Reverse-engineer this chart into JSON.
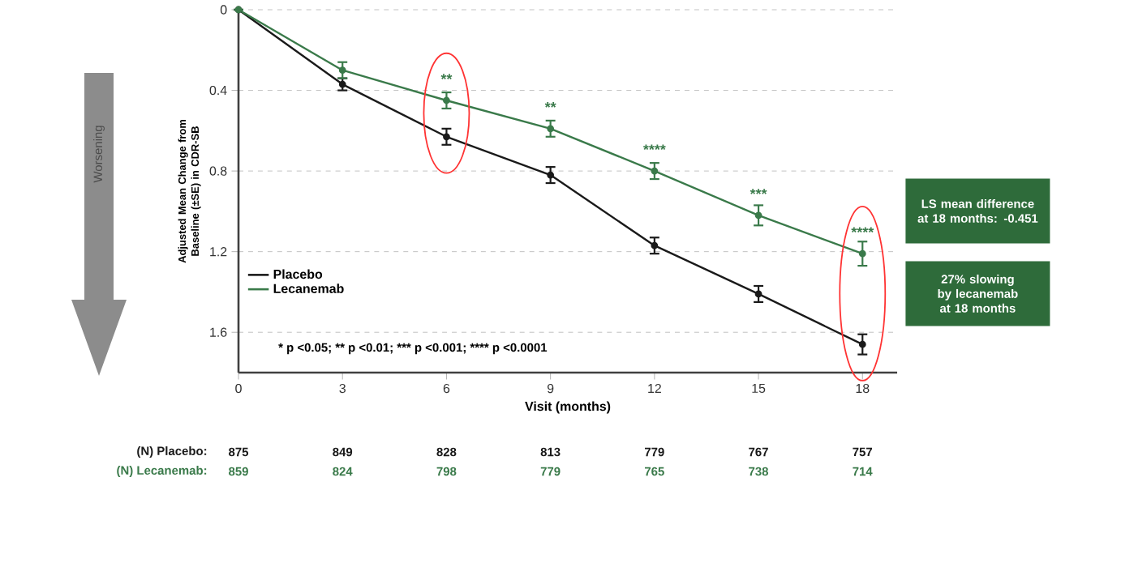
{
  "chart_data": {
    "type": "line",
    "xlabel": "Visit (months)",
    "ylabel": "Adjusted Mean Change from Baseline (±SE) in CDR-SB",
    "x": [
      0,
      3,
      6,
      9,
      12,
      15,
      18
    ],
    "series": [
      {
        "name": "Placebo",
        "color": "#1a1a1a",
        "values": [
          0,
          0.37,
          0.63,
          0.82,
          1.17,
          1.41,
          1.66
        ],
        "errors": [
          null,
          0.03,
          0.04,
          0.04,
          0.04,
          0.04,
          0.05
        ]
      },
      {
        "name": "Lecanemab",
        "color": "#3a7a4a",
        "values": [
          0,
          0.3,
          0.45,
          0.59,
          0.8,
          1.02,
          1.21
        ],
        "errors": [
          null,
          0.04,
          0.04,
          0.04,
          0.04,
          0.05,
          0.06
        ]
      }
    ],
    "xlim": [
      0,
      19
    ],
    "xticks": [
      0,
      3,
      6,
      9,
      12,
      15,
      18
    ],
    "ylim": [
      1.8,
      0
    ],
    "yticks": [
      0,
      0.4,
      0.8,
      1.2,
      1.6
    ],
    "grid": "y",
    "legend": "bottom left",
    "marker": "circle",
    "line_style": "solid",
    "annotations": [
      "* p <0.05;",
      "** p <0.01;",
      "*** p <0.001;",
      "**** p <0.0001",
      "LS mean difference at 18 months: -0.451",
      "27% slowing by lecanemab at 18 months",
      "Worsening",
      {
        "text": "**",
        "x": 6,
        "y": 0.45
      },
      {
        "text": "**",
        "x": 9,
        "y": 0.59
      },
      {
        "text": "****",
        "x": 12,
        "y": 0.8
      },
      {
        "text": "***",
        "x": 15,
        "y": 1.02
      },
      {
        "text": "****",
        "x": 18,
        "y": 1.21
      },
      "(N) Placebo:",
      "875",
      "849",
      "828",
      "813",
      "779",
      "767",
      "757",
      "(N) Lecanemab:",
      "859",
      "824",
      "798",
      "779",
      "765",
      "738",
      "714"
    ]
  }
}
